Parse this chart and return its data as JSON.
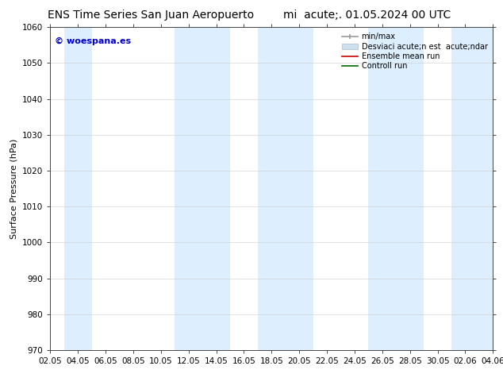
{
  "title_left": "ENS Time Series San Juan Aeropuerto",
  "title_right": "mi  acute;. 01.05.2024 00 UTC",
  "ylabel": "Surface Pressure (hPa)",
  "ylim": [
    970,
    1060
  ],
  "yticks": [
    970,
    980,
    990,
    1000,
    1010,
    1020,
    1030,
    1040,
    1050,
    1060
  ],
  "xtick_labels": [
    "02.05",
    "04.05",
    "06.05",
    "08.05",
    "10.05",
    "12.05",
    "14.05",
    "16.05",
    "18.05",
    "20.05",
    "22.05",
    "24.05",
    "26.05",
    "28.05",
    "30.05",
    "02.06",
    "04.06"
  ],
  "watermark": "© woespana.es",
  "watermark_color": "#0000cc",
  "shaded_band_color": "#ddeeff",
  "shaded_band_alpha": 1.0,
  "bg_color": "#ffffff",
  "title_fontsize": 10,
  "axis_fontsize": 8,
  "tick_fontsize": 7.5,
  "legend_fontsize": 7,
  "watermark_fontsize": 8
}
